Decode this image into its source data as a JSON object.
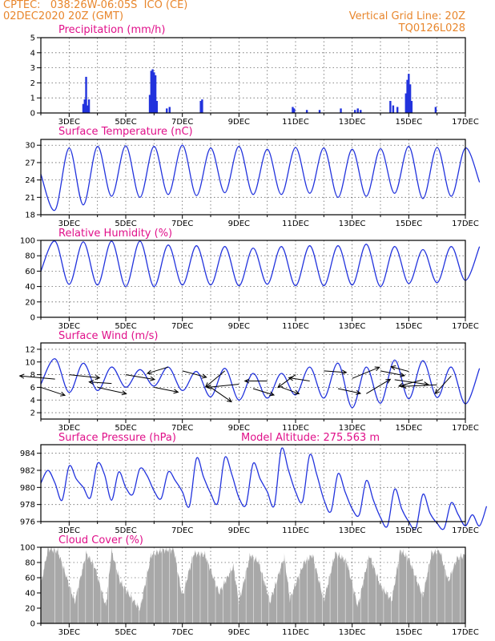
{
  "header": {
    "line1_left": "CPTEC:   038:26W-06:05S  ICO (CE)",
    "line2_left": "02DEC2020 20Z (GMT)",
    "line1_right": "Vertical Grid Line: 20Z",
    "line2_right": "TQ0126L028"
  },
  "colors": {
    "line": "#2233dd",
    "bar": "#2233dd",
    "cloud": "#a8a8a8",
    "title": "#e0108a",
    "header": "#e8862c"
  },
  "x_axis": {
    "labels": [
      "3DEC",
      "5DEC",
      "7DEC",
      "9DEC",
      "11DEC",
      "13DEC",
      "15DEC",
      "17DEC"
    ],
    "label_days": [
      1,
      3,
      5,
      7,
      9,
      11,
      13,
      15
    ],
    "start": "02DEC2020 20Z",
    "days_span": 15
  },
  "chart_data": [
    {
      "type": "bar",
      "title": "Precipitation (mm/h)",
      "ylim": [
        0,
        5
      ],
      "yticks": [
        0,
        1,
        2,
        3,
        4,
        5
      ],
      "x": [
        1.5,
        1.55,
        1.6,
        1.65,
        1.7,
        3.85,
        3.9,
        3.95,
        4.0,
        4.05,
        4.1,
        4.45,
        4.55,
        5.65,
        5.7,
        8.9,
        8.95,
        9.4,
        9.85,
        10.6,
        11.1,
        11.2,
        11.3,
        12.35,
        12.45,
        12.6,
        12.9,
        12.95,
        13.0,
        13.05,
        13.1,
        13.95
      ],
      "values": [
        0.6,
        0.9,
        2.4,
        0.5,
        0.9,
        1.2,
        2.8,
        2.9,
        2.7,
        2.5,
        0.8,
        0.3,
        0.4,
        0.8,
        0.9,
        0.4,
        0.3,
        0.2,
        0.2,
        0.3,
        0.2,
        0.3,
        0.2,
        0.8,
        0.5,
        0.4,
        1.3,
        2.2,
        2.6,
        1.9,
        0.8,
        0.4
      ]
    },
    {
      "type": "line",
      "title": "Surface Temperature (nC)",
      "ylim": [
        18,
        31
      ],
      "yticks": [
        18,
        21,
        24,
        27,
        30
      ],
      "series": [
        {
          "x_start_day": 0,
          "step_days": 0.5,
          "values": [
            25,
            18.8,
            29.5,
            19.7,
            29.8,
            21.2,
            29.9,
            21,
            29.8,
            21.5,
            30,
            21.3,
            29.5,
            21.8,
            29.8,
            21.5,
            29.3,
            21.5,
            29.6,
            21.7,
            29.5,
            21,
            29.3,
            21.2,
            29.4,
            21.7,
            29.8,
            20.8,
            29.6,
            21.2,
            29.5,
            23.6
          ]
        }
      ]
    },
    {
      "type": "line",
      "title": "Relative Humidity (%)",
      "ylim": [
        0,
        100
      ],
      "yticks": [
        0,
        20,
        40,
        60,
        80,
        100
      ],
      "series": [
        {
          "x_start_day": 0,
          "step_days": 0.5,
          "values": [
            60,
            99,
            43,
            98,
            42,
            99,
            40,
            99,
            40,
            94,
            42,
            93,
            42,
            92,
            41,
            90,
            43,
            92,
            41,
            93,
            41,
            93,
            42,
            95,
            40,
            92,
            44,
            88,
            45,
            92,
            48,
            92
          ]
        }
      ]
    },
    {
      "type": "line",
      "title": "Surface Wind (m/s)",
      "ylim": [
        1,
        13
      ],
      "yticks": [
        2,
        4,
        6,
        8,
        10,
        12
      ],
      "series": [
        {
          "x_start_day": 0,
          "step_days": 0.5,
          "values": [
            6.5,
            10.5,
            5.2,
            9.8,
            5.5,
            9.2,
            6,
            8.8,
            6.2,
            9.2,
            5.5,
            8.5,
            4.5,
            9,
            4,
            8.2,
            4.3,
            8.2,
            4.8,
            9.2,
            4.3,
            9.8,
            2.8,
            9.2,
            3.5,
            10.3,
            4.2,
            10.2,
            4.4,
            9.2,
            3.4,
            9
          ]
        }
      ],
      "arrows": [
        {
          "day": 0.0,
          "y": 6.0,
          "dx": 30,
          "dy": 10
        },
        {
          "day": 0.5,
          "y": 7.3,
          "dx": -44,
          "dy": -4
        },
        {
          "day": 1.0,
          "y": 8.0,
          "dx": 38,
          "dy": 4
        },
        {
          "day": 2.0,
          "y": 6.0,
          "dx": 36,
          "dy": 8
        },
        {
          "day": 2.5,
          "y": 6.6,
          "dx": -28,
          "dy": -2
        },
        {
          "day": 3.0,
          "y": 8.0,
          "dx": 36,
          "dy": 6
        },
        {
          "day": 4.0,
          "y": 6.0,
          "dx": 30,
          "dy": 6
        },
        {
          "day": 4.5,
          "y": 9.2,
          "dx": -26,
          "dy": 8
        },
        {
          "day": 5.0,
          "y": 8.6,
          "dx": 30,
          "dy": 8
        },
        {
          "day": 6.0,
          "y": 6.0,
          "dx": 26,
          "dy": 18
        },
        {
          "day": 6.5,
          "y": 8.6,
          "dx": -24,
          "dy": 20
        },
        {
          "day": 7.0,
          "y": 6.5,
          "dx": -40,
          "dy": 4
        },
        {
          "day": 7.5,
          "y": 5.8,
          "dx": 26,
          "dy": 8
        },
        {
          "day": 8.0,
          "y": 7.0,
          "dx": -28,
          "dy": 0
        },
        {
          "day": 8.5,
          "y": 6.0,
          "dx": 22,
          "dy": 8
        },
        {
          "day": 9.0,
          "y": 8.0,
          "dx": -22,
          "dy": 16
        },
        {
          "day": 9.5,
          "y": 7.0,
          "dx": -26,
          "dy": -4
        },
        {
          "day": 10.0,
          "y": 8.6,
          "dx": 28,
          "dy": 2
        },
        {
          "day": 10.5,
          "y": 5.8,
          "dx": 28,
          "dy": 6
        },
        {
          "day": 11.0,
          "y": 7.4,
          "dx": 34,
          "dy": -14
        },
        {
          "day": 11.5,
          "y": 5.0,
          "dx": 30,
          "dy": -18
        },
        {
          "day": 12.0,
          "y": 8.6,
          "dx": 30,
          "dy": 6
        },
        {
          "day": 12.5,
          "y": 7.2,
          "dx": 42,
          "dy": 6
        },
        {
          "day": 13.0,
          "y": 8.5,
          "dx": -22,
          "dy": -6
        },
        {
          "day": 13.5,
          "y": 7.2,
          "dx": -30,
          "dy": 8
        },
        {
          "day": 14.0,
          "y": 6.4,
          "dx": -44,
          "dy": 2
        },
        {
          "day": 14.5,
          "y": 7.8,
          "dx": -20,
          "dy": 22
        }
      ]
    },
    {
      "type": "line",
      "title": "Surface Pressure (hPa)",
      "annotation": "Model Altitude: 275.563 m",
      "ylim": [
        976,
        985
      ],
      "yticks": [
        976,
        978,
        980,
        982,
        984
      ],
      "series": [
        {
          "x_start_day": 0,
          "step_days": 0.25,
          "values": [
            980.5,
            982,
            980.5,
            978.5,
            982.5,
            981,
            980,
            978.8,
            982.8,
            981.5,
            978.5,
            981.8,
            980,
            979.2,
            982.2,
            981.4,
            979.6,
            978.7,
            981.8,
            980.8,
            979.5,
            977.8,
            983.4,
            981.2,
            979.3,
            978.2,
            983.5,
            981.5,
            978.8,
            978,
            982.8,
            981,
            979.5,
            977.9,
            984.5,
            982,
            979.5,
            978.4,
            983.8,
            981.5,
            978.6,
            977.2,
            981.6,
            979.5,
            977.5,
            976.8,
            980.8,
            978.5,
            976.5,
            975.5,
            979.8,
            977.5,
            976,
            975.2,
            979.2,
            977,
            975.8,
            975.2,
            978.2,
            976.8,
            975.5,
            976.8,
            975.5,
            977.8
          ]
        }
      ]
    },
    {
      "type": "area",
      "title": "Cloud Cover (%)",
      "ylim": [
        0,
        100
      ],
      "yticks": [
        0,
        20,
        40,
        60,
        80,
        100
      ],
      "x": [
        0,
        0.25,
        0.6,
        1.2,
        1.6,
        1.9,
        2.3,
        2.5,
        2.8,
        3.5,
        3.9,
        4.3,
        4.7,
        5.0,
        5.4,
        5.8,
        6.3,
        6.8,
        7.0,
        7.4,
        7.7,
        8.1,
        8.6,
        8.8,
        9.3,
        9.6,
        10.0,
        10.4,
        10.8,
        11.2,
        11.6,
        12.0,
        12.4,
        12.7,
        13.0,
        13.5,
        13.8,
        14.1,
        14.4,
        14.7,
        15.0
      ],
      "values": [
        50,
        98,
        95,
        28,
        92,
        75,
        22,
        95,
        55,
        18,
        90,
        96,
        97,
        35,
        92,
        90,
        40,
        75,
        28,
        90,
        80,
        28,
        88,
        32,
        80,
        90,
        30,
        92,
        82,
        22,
        90,
        50,
        30,
        96,
        85,
        35,
        92,
        95,
        55,
        85,
        90
      ]
    }
  ]
}
